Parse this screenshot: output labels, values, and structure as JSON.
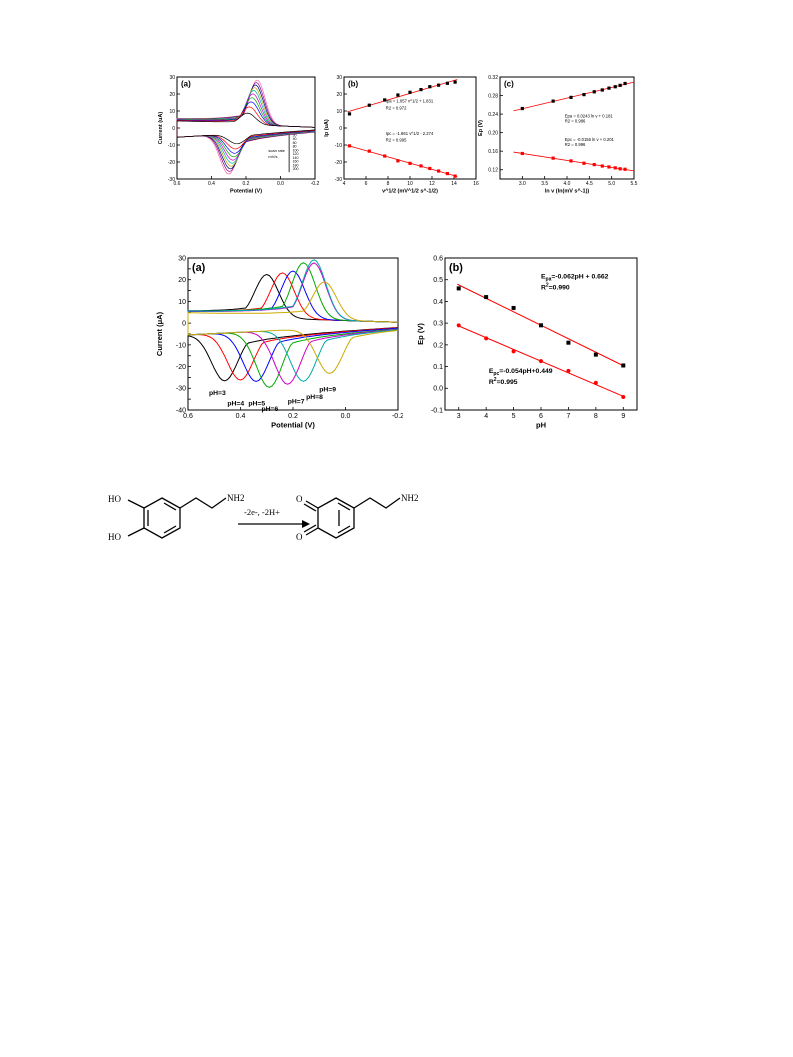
{
  "chart_data": [
    {
      "id": "top-a",
      "type": "line",
      "panel_label": "(a)",
      "xlabel": "Potential (V)",
      "ylabel": "Current (uA)",
      "xlim": [
        0.6,
        -0.2
      ],
      "ylim": [
        -30,
        30
      ],
      "xticks": [
        "0.6",
        "0.4",
        "0.2",
        "0.0",
        "-0.2"
      ],
      "yticks": [
        "30",
        "20",
        "10",
        "0",
        "-10",
        "-20",
        "-30"
      ],
      "legend_title": [
        "scan rate",
        "mV/s"
      ],
      "scan_rates": [
        "20",
        "40",
        "60",
        "80",
        "100",
        "120",
        "140",
        "160",
        "180",
        "200"
      ],
      "colors": [
        "#000000",
        "#ff0000",
        "#0000ff",
        "#00aa00",
        "#cc00cc",
        "#00aaaa",
        "#aaaa00",
        "#000080",
        "#800080",
        "#ff66aa"
      ],
      "anodic_peak_potential": [
        0.19,
        0.18,
        0.17,
        0.165,
        0.16,
        0.155,
        0.15,
        0.145,
        0.14,
        0.135
      ],
      "anodic_peak_current": [
        6.8,
        10.5,
        13.5,
        16,
        18.3,
        20.3,
        22,
        23.6,
        25,
        26.5
      ],
      "cathodic_peak_potential": [
        0.25,
        0.26,
        0.265,
        0.27,
        0.275,
        0.28,
        0.285,
        0.29,
        0.295,
        0.3
      ],
      "cathodic_peak_current": [
        -6,
        -9,
        -11.5,
        -13.6,
        -15.5,
        -17.3,
        -19,
        -20.5,
        -22,
        -23.5
      ]
    },
    {
      "id": "top-b",
      "type": "scatter",
      "panel_label": "(b)",
      "xlabel": "v^1/2 (mV^1/2 s^-1/2)",
      "ylabel": "Ip (uA)",
      "xlim": [
        4,
        16
      ],
      "ylim": [
        -30,
        30
      ],
      "xticks": [
        "4",
        "6",
        "8",
        "10",
        "12",
        "14",
        "16"
      ],
      "yticks": [
        "30",
        "20",
        "10",
        "0",
        "-10",
        "-20",
        "-30"
      ],
      "series": [
        {
          "name": "Ipa",
          "color": "#000000",
          "x": [
            4.5,
            6.3,
            7.7,
            8.9,
            10,
            11,
            11.8,
            12.6,
            13.4,
            14.1
          ],
          "y": [
            8.3,
            13.4,
            16.5,
            19.4,
            21.0,
            22.6,
            24.3,
            25.2,
            26.3,
            27.0
          ]
        },
        {
          "name": "Ipc",
          "color": "#ff0000",
          "x": [
            4.5,
            6.3,
            7.7,
            8.9,
            10,
            11,
            11.8,
            12.6,
            13.4,
            14.1
          ],
          "y": [
            -10.5,
            -13.6,
            -16.5,
            -19.3,
            -20.8,
            -22.3,
            -23.8,
            -25.3,
            -26.8,
            -28.3
          ]
        }
      ],
      "annotations": [
        "Ipa = 1.057 v^1/2 + 1.831",
        "R2 = 0.972",
        "Ipc = -1.861 v^1/2 - 2.274",
        "R2 = 0.995"
      ]
    },
    {
      "id": "top-c",
      "type": "scatter",
      "panel_label": "(c)",
      "xlabel": "ln v (ln(mV s^-1))",
      "ylabel": "Ep (V)",
      "xlim": [
        2.5,
        5.5
      ],
      "ylim": [
        0.1,
        0.32
      ],
      "xticks": [
        "3.0",
        "3.5",
        "4.0",
        "4.5",
        "5.0",
        "5.5"
      ],
      "yticks": [
        "0.32",
        "0.28",
        "0.24",
        "0.20",
        "0.16",
        "0.12"
      ],
      "series": [
        {
          "name": "Epa",
          "color": "#000000",
          "x": [
            3.0,
            3.69,
            4.09,
            4.38,
            4.61,
            4.79,
            4.94,
            5.08,
            5.19,
            5.3
          ],
          "y": [
            0.252,
            0.268,
            0.276,
            0.282,
            0.288,
            0.292,
            0.296,
            0.299,
            0.302,
            0.306
          ]
        },
        {
          "name": "Epc",
          "color": "#ff0000",
          "x": [
            3.0,
            3.69,
            4.09,
            4.38,
            4.61,
            4.79,
            4.94,
            5.08,
            5.19,
            5.3
          ],
          "y": [
            0.155,
            0.145,
            0.139,
            0.134,
            0.131,
            0.128,
            0.126,
            0.124,
            0.122,
            0.121
          ]
        }
      ],
      "annotations": [
        "Epa = 0.0243 ln v + 0.181",
        "R2 = 0.986",
        "Epc = -0.0156 ln v + 0.201",
        "R2 = 0.996"
      ]
    },
    {
      "id": "mid-a",
      "type": "line",
      "panel_label": "(a)",
      "xlabel": "Potential (V)",
      "ylabel": "Current (μA)",
      "xlim": [
        0.6,
        -0.2
      ],
      "ylim": [
        -40,
        30
      ],
      "xticks": [
        "0.6",
        "0.4",
        "0.2",
        "0.0",
        "-0.2"
      ],
      "yticks": [
        "30",
        "25",
        "20",
        "15",
        "10",
        "5",
        "0",
        "-5",
        "-10",
        "-15",
        "-20",
        "-25",
        "-30",
        "-35",
        "-40"
      ],
      "series": [
        {
          "name": "pH=3",
          "color": "#000000",
          "anodic_peak": [
            0.3,
            20
          ],
          "cathodic_peak": [
            0.46,
            -22
          ]
        },
        {
          "name": "pH=4",
          "color": "#ff0000",
          "anodic_peak": [
            0.24,
            21
          ],
          "cathodic_peak": [
            0.4,
            -22
          ]
        },
        {
          "name": "pH=5",
          "color": "#0000ff",
          "anodic_peak": [
            0.2,
            22
          ],
          "cathodic_peak": [
            0.34,
            -23
          ]
        },
        {
          "name": "pH=6",
          "color": "#00aa00",
          "anodic_peak": [
            0.16,
            26
          ],
          "cathodic_peak": [
            0.29,
            -26
          ]
        },
        {
          "name": "pH=7",
          "color": "#cc00cc",
          "anodic_peak": [
            0.12,
            26
          ],
          "cathodic_peak": [
            0.22,
            -25
          ]
        },
        {
          "name": "pH=8",
          "color": "#00aaaa",
          "anodic_peak": [
            0.12,
            27.5
          ],
          "cathodic_peak": [
            0.16,
            -24
          ]
        },
        {
          "name": "pH=9",
          "color": "#ccaa00",
          "anodic_peak": [
            0.08,
            17.5
          ],
          "cathodic_peak": [
            0.06,
            -21
          ]
        }
      ],
      "labels": [
        "pH=3",
        "pH=4",
        "pH=5",
        "pH=6",
        "pH=7",
        "pH=8",
        "pH=9"
      ]
    },
    {
      "id": "mid-b",
      "type": "scatter",
      "panel_label": "(b)",
      "xlabel": "pH",
      "ylabel": "Ep (V)",
      "xlim": [
        2.5,
        9.5
      ],
      "ylim": [
        -0.1,
        0.6
      ],
      "xticks": [
        "3",
        "4",
        "5",
        "6",
        "7",
        "8",
        "9"
      ],
      "yticks": [
        "0.6",
        "0.5",
        "0.4",
        "0.3",
        "0.2",
        "0.1",
        "0.0",
        "-0.1"
      ],
      "series": [
        {
          "name": "Epa",
          "color": "#000000",
          "x": [
            3,
            4,
            5,
            6,
            7,
            8,
            9
          ],
          "y": [
            0.46,
            0.42,
            0.37,
            0.29,
            0.21,
            0.155,
            0.105
          ]
        },
        {
          "name": "Epc",
          "color": "#ff0000",
          "x": [
            3,
            4,
            5,
            6,
            7,
            8,
            9
          ],
          "y": [
            0.29,
            0.23,
            0.17,
            0.125,
            0.08,
            0.025,
            -0.04
          ]
        }
      ],
      "fit_lines": [
        {
          "slope": -0.062,
          "intercept": 0.662,
          "color": "#ff0000"
        },
        {
          "slope": -0.054,
          "intercept": 0.449,
          "color": "#ff0000"
        }
      ],
      "annotations": [
        {
          "main": "E",
          "sub": "pa",
          "rest": "=-0.062pH + 0.662"
        },
        {
          "main": "R",
          "sup": "2",
          "rest": "=0.990"
        },
        {
          "main": "E",
          "sub": "pc",
          "rest": "=-0.054pH+0.449"
        },
        {
          "main": "R",
          "sup": "2",
          "rest": "=0.995"
        }
      ]
    }
  ],
  "reaction": {
    "reactant_groups": [
      "HO",
      "HO",
      "NH2"
    ],
    "product_groups": [
      "O",
      "O",
      "NH2"
    ],
    "conditions": "-2e-, -2H+"
  }
}
